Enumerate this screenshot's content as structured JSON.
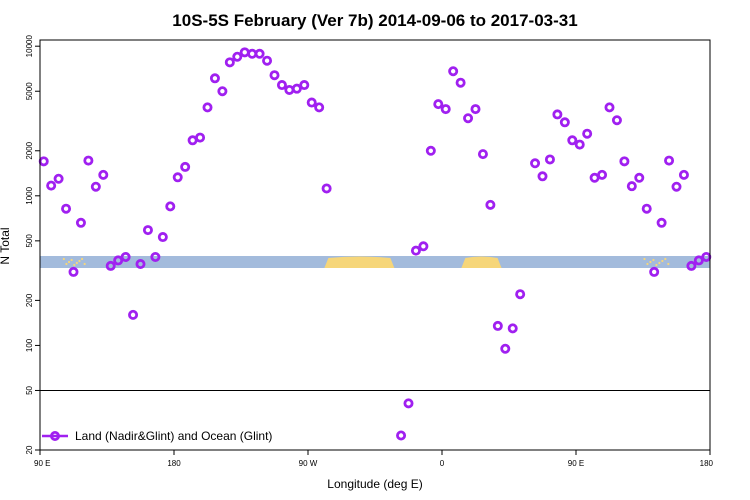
{
  "chart_data": {
    "type": "scatter",
    "title": "10S-5S February (Ver 7b)   2014-09-06 to 2017-03-31",
    "xlabel": "Longitude (deg E)",
    "ylabel": "N Total",
    "x_ticks": [
      {
        "value": 90,
        "label": "90 E"
      },
      {
        "value": 180,
        "label": "180"
      },
      {
        "value": 270,
        "label": "90 W"
      },
      {
        "value": 360,
        "label": "0"
      },
      {
        "value": 450,
        "label": "90 E"
      },
      {
        "value": 540,
        "label": "180"
      }
    ],
    "x_range": [
      90,
      540
    ],
    "y_scale": "log",
    "ylim": [
      20,
      11000
    ],
    "y_ticks": [
      {
        "value": 20,
        "label": "20"
      },
      {
        "value": 50,
        "label": "50"
      },
      {
        "value": 100,
        "label": "100"
      },
      {
        "value": 200,
        "label": "200"
      },
      {
        "value": 500,
        "label": "500"
      },
      {
        "value": 1000,
        "label": "1000"
      },
      {
        "value": 2000,
        "label": "2000"
      },
      {
        "value": 5000,
        "label": "5000"
      },
      {
        "value": 10000,
        "label": "10000"
      }
    ],
    "reference_line": 50,
    "legend_position": "bottom-left",
    "colors": {
      "series": "#a020f0",
      "ocean": "#a3bbdc",
      "land": "#f6d67a"
    },
    "series": [
      {
        "name": "Land (Nadir&Glint) and Ocean (Glint)",
        "points": [
          {
            "x": 92.5,
            "y": 1700
          },
          {
            "x": 97.5,
            "y": 1170
          },
          {
            "x": 102.5,
            "y": 1300
          },
          {
            "x": 107.5,
            "y": 820
          },
          {
            "x": 112.5,
            "y": 310
          },
          {
            "x": 117.5,
            "y": 660
          },
          {
            "x": 122.5,
            "y": 1720
          },
          {
            "x": 127.5,
            "y": 1150
          },
          {
            "x": 132.5,
            "y": 1380
          },
          {
            "x": 137.5,
            "y": 340
          },
          {
            "x": 142.5,
            "y": 370
          },
          {
            "x": 147.5,
            "y": 390
          },
          {
            "x": 152.5,
            "y": 160
          },
          {
            "x": 157.5,
            "y": 350
          },
          {
            "x": 162.5,
            "y": 590
          },
          {
            "x": 167.5,
            "y": 390
          },
          {
            "x": 172.5,
            "y": 530
          },
          {
            "x": 177.5,
            "y": 850
          },
          {
            "x": 182.5,
            "y": 1330
          },
          {
            "x": 187.5,
            "y": 1560
          },
          {
            "x": 192.5,
            "y": 2350
          },
          {
            "x": 197.5,
            "y": 2450
          },
          {
            "x": 202.5,
            "y": 3900
          },
          {
            "x": 207.5,
            "y": 6100
          },
          {
            "x": 212.5,
            "y": 5000
          },
          {
            "x": 217.5,
            "y": 7800
          },
          {
            "x": 222.5,
            "y": 8500
          },
          {
            "x": 227.5,
            "y": 9100
          },
          {
            "x": 232.5,
            "y": 8900
          },
          {
            "x": 237.5,
            "y": 8900
          },
          {
            "x": 242.5,
            "y": 8000
          },
          {
            "x": 247.5,
            "y": 6400
          },
          {
            "x": 252.5,
            "y": 5500
          },
          {
            "x": 257.5,
            "y": 5100
          },
          {
            "x": 262.5,
            "y": 5200
          },
          {
            "x": 267.5,
            "y": 5500
          },
          {
            "x": 272.5,
            "y": 4200
          },
          {
            "x": 277.5,
            "y": 3900
          },
          {
            "x": 282.5,
            "y": 1120
          },
          {
            "x": 332.5,
            "y": 25
          },
          {
            "x": 337.5,
            "y": 41
          },
          {
            "x": 342.5,
            "y": 430
          },
          {
            "x": 347.5,
            "y": 460
          },
          {
            "x": 352.5,
            "y": 2000
          },
          {
            "x": 357.5,
            "y": 4100
          },
          {
            "x": 362.5,
            "y": 3800
          },
          {
            "x": 367.5,
            "y": 6800
          },
          {
            "x": 372.5,
            "y": 5700
          },
          {
            "x": 377.5,
            "y": 3300
          },
          {
            "x": 382.5,
            "y": 3800
          },
          {
            "x": 387.5,
            "y": 1900
          },
          {
            "x": 392.5,
            "y": 870
          },
          {
            "x": 397.5,
            "y": 135
          },
          {
            "x": 402.5,
            "y": 95
          },
          {
            "x": 407.5,
            "y": 130
          },
          {
            "x": 412.5,
            "y": 220
          },
          {
            "x": 422.5,
            "y": 1650
          },
          {
            "x": 427.5,
            "y": 1350
          },
          {
            "x": 432.5,
            "y": 1750
          },
          {
            "x": 437.5,
            "y": 3500
          },
          {
            "x": 442.5,
            "y": 3100
          },
          {
            "x": 447.5,
            "y": 2350
          },
          {
            "x": 452.5,
            "y": 2200
          },
          {
            "x": 457.5,
            "y": 2600
          },
          {
            "x": 462.5,
            "y": 1320
          },
          {
            "x": 467.5,
            "y": 1380
          },
          {
            "x": 472.5,
            "y": 3900
          },
          {
            "x": 477.5,
            "y": 3200
          },
          {
            "x": 482.5,
            "y": 1700
          },
          {
            "x": 487.5,
            "y": 1160
          },
          {
            "x": 492.5,
            "y": 1320
          },
          {
            "x": 497.5,
            "y": 820
          },
          {
            "x": 502.5,
            "y": 310
          },
          {
            "x": 507.5,
            "y": 660
          },
          {
            "x": 512.5,
            "y": 1720
          },
          {
            "x": 517.5,
            "y": 1150
          },
          {
            "x": 522.5,
            "y": 1380
          },
          {
            "x": 527.5,
            "y": 340
          },
          {
            "x": 532.5,
            "y": 370
          },
          {
            "x": 537.5,
            "y": 390
          }
        ]
      }
    ],
    "land_segments": [
      [
        281,
        328
      ],
      [
        373,
        400
      ]
    ],
    "land_specks": [
      [
        106,
        120
      ],
      [
        496,
        512
      ]
    ]
  }
}
